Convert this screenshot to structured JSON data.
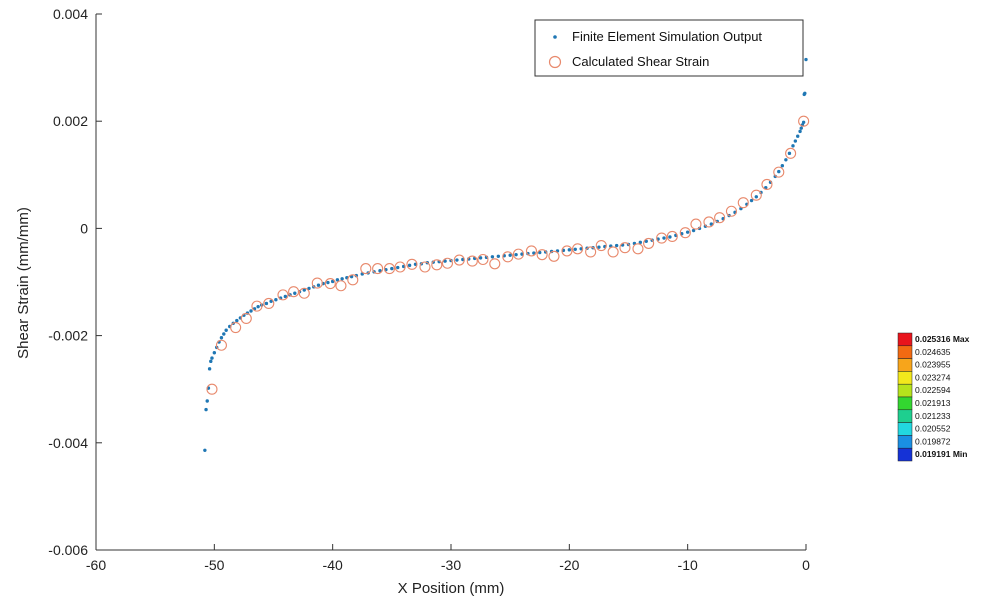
{
  "chart_data": {
    "type": "scatter",
    "title": "",
    "xlabel": "X Position (mm)",
    "ylabel": "Shear Strain (mm/mm)",
    "xlim": [
      -60,
      0
    ],
    "ylim": [
      -0.006,
      0.004
    ],
    "xticks": [
      -60,
      -50,
      -40,
      -30,
      -20,
      -10,
      0
    ],
    "xtick_labels": [
      "-60",
      "-50",
      "-40",
      "-30",
      "-20",
      "-10",
      "0"
    ],
    "yticks": [
      -0.006,
      -0.004,
      -0.002,
      0,
      0.002,
      0.004
    ],
    "ytick_labels": [
      "-0.006",
      "-0.004",
      "-0.002",
      "0",
      "0.002",
      "0.004"
    ],
    "grid": false,
    "legend_position": "top-right",
    "series": [
      {
        "name": "Finite Element Simulation Output",
        "marker": "dot",
        "color": "#1f77b4",
        "x": [
          -50.8,
          -50.7,
          -50.6,
          -50.5,
          -50.4,
          -50.3,
          -50.2,
          -50.0,
          -49.8,
          -49.6,
          -49.4,
          -49.2,
          -49.0,
          -48.7,
          -48.4,
          -48.1,
          -47.8,
          -47.5,
          -47.2,
          -46.9,
          -46.6,
          -46.3,
          -46.0,
          -45.6,
          -45.2,
          -44.8,
          -44.4,
          -44.0,
          -43.6,
          -43.2,
          -42.8,
          -42.4,
          -42.0,
          -41.6,
          -41.2,
          -40.8,
          -40.4,
          -40.0,
          -39.6,
          -39.2,
          -38.8,
          -38.4,
          -38.0,
          -37.5,
          -37.0,
          -36.5,
          -36.0,
          -35.5,
          -35.0,
          -34.5,
          -34.0,
          -33.5,
          -33.0,
          -32.5,
          -32.0,
          -31.5,
          -31.0,
          -30.5,
          -30.0,
          -29.5,
          -29.0,
          -28.5,
          -28.0,
          -27.5,
          -27.0,
          -26.5,
          -26.0,
          -25.5,
          -25.0,
          -24.5,
          -24.0,
          -23.5,
          -23.0,
          -22.5,
          -22.0,
          -21.5,
          -21.0,
          -20.5,
          -20.0,
          -19.5,
          -19.0,
          -18.5,
          -18.0,
          -17.5,
          -17.0,
          -16.5,
          -16.0,
          -15.5,
          -15.0,
          -14.5,
          -14.0,
          -13.5,
          -13.0,
          -12.5,
          -12.0,
          -11.5,
          -11.0,
          -10.5,
          -10.0,
          -9.5,
          -9.0,
          -8.5,
          -8.0,
          -7.5,
          -7.0,
          -6.5,
          -6.0,
          -5.5,
          -5.0,
          -4.6,
          -4.2,
          -3.8,
          -3.4,
          -3.0,
          -2.6,
          -2.3,
          -2.0,
          -1.7,
          -1.4,
          -1.1,
          -0.9,
          -0.7,
          -0.5,
          -0.4,
          -0.3,
          -0.2
        ],
        "y": [
          -0.00414,
          -0.00338,
          -0.00322,
          -0.00298,
          -0.00262,
          -0.00248,
          -0.00242,
          -0.00232,
          -0.00222,
          -0.00212,
          -0.00204,
          -0.00197,
          -0.0019,
          -0.00183,
          -0.00177,
          -0.00172,
          -0.00167,
          -0.00162,
          -0.00158,
          -0.00154,
          -0.0015,
          -0.00146,
          -0.00143,
          -0.0014,
          -0.00136,
          -0.00133,
          -0.0013,
          -0.00127,
          -0.00124,
          -0.00121,
          -0.00118,
          -0.00115,
          -0.00112,
          -0.00109,
          -0.00106,
          -0.00103,
          -0.00101,
          -0.00099,
          -0.00096,
          -0.00094,
          -0.00092,
          -0.0009,
          -0.00088,
          -0.00085,
          -0.00083,
          -0.00081,
          -0.00079,
          -0.00077,
          -0.00075,
          -0.00073,
          -0.00071,
          -0.00069,
          -0.00067,
          -0.00066,
          -0.00064,
          -0.00063,
          -0.00062,
          -0.00061,
          -0.0006,
          -0.00059,
          -0.00058,
          -0.00057,
          -0.00056,
          -0.00055,
          -0.00054,
          -0.00053,
          -0.00052,
          -0.00051,
          -0.0005,
          -0.00049,
          -0.00048,
          -0.00047,
          -0.00046,
          -0.00045,
          -0.00044,
          -0.00043,
          -0.00042,
          -0.00041,
          -0.0004,
          -0.00039,
          -0.00038,
          -0.00037,
          -0.00036,
          -0.00035,
          -0.00034,
          -0.00033,
          -0.00032,
          -0.00031,
          -0.0003,
          -0.00028,
          -0.00026,
          -0.00024,
          -0.00022,
          -0.0002,
          -0.00018,
          -0.00016,
          -0.00013,
          -0.0001,
          -7e-05,
          -4e-05,
          0.0,
          4e-05,
          8e-05,
          0.00013,
          0.00018,
          0.00024,
          0.0003,
          0.00037,
          0.00045,
          0.00052,
          0.00059,
          0.00067,
          0.00076,
          0.00086,
          0.00097,
          0.00106,
          0.00117,
          0.00128,
          0.0014,
          0.00154,
          0.00163,
          0.00172,
          0.00181,
          0.00187,
          0.00193,
          0.00198
        ]
      },
      {
        "name": "Calculated Shear Strain",
        "marker": "circle",
        "color": "#e8896c",
        "x": [
          -50.2,
          -49.4,
          -48.2,
          -47.3,
          -46.4,
          -45.4,
          -44.2,
          -43.3,
          -42.4,
          -41.3,
          -40.2,
          -39.3,
          -38.3,
          -37.2,
          -36.2,
          -35.2,
          -34.3,
          -33.3,
          -32.2,
          -31.2,
          -30.3,
          -29.3,
          -28.2,
          -27.3,
          -26.3,
          -25.2,
          -24.3,
          -23.2,
          -22.3,
          -21.3,
          -20.2,
          -19.3,
          -18.2,
          -17.3,
          -16.3,
          -15.3,
          -14.2,
          -13.3,
          -12.2,
          -11.3,
          -10.2,
          -9.3,
          -8.2,
          -7.3,
          -6.3,
          -5.3,
          -4.2,
          -3.3,
          -2.3,
          -1.3,
          -0.2
        ],
        "y": [
          -0.003,
          -0.00218,
          -0.00185,
          -0.00168,
          -0.00145,
          -0.0014,
          -0.00124,
          -0.00118,
          -0.00121,
          -0.00102,
          -0.00103,
          -0.00107,
          -0.00096,
          -0.00075,
          -0.00075,
          -0.00075,
          -0.00072,
          -0.00067,
          -0.00072,
          -0.00068,
          -0.00065,
          -0.00059,
          -0.00061,
          -0.00058,
          -0.00066,
          -0.00053,
          -0.00048,
          -0.00042,
          -0.00049,
          -0.00052,
          -0.00042,
          -0.00038,
          -0.00044,
          -0.00032,
          -0.00044,
          -0.00036,
          -0.00038,
          -0.00028,
          -0.00018,
          -0.00015,
          -8e-05,
          8e-05,
          0.00012,
          0.0002,
          0.00032,
          0.00048,
          0.00062,
          0.00082,
          0.00105,
          0.0014,
          0.002
        ]
      }
    ],
    "colorbar": {
      "labels": [
        "0.025316 Max",
        "0.024635",
        "0.023955",
        "0.023274",
        "0.022594",
        "0.021913",
        "0.021233",
        "0.020552",
        "0.019872",
        "0.019191 Min"
      ],
      "colors": [
        "#e8141c",
        "#f26a12",
        "#f7a51b",
        "#f2e81c",
        "#b6e31c",
        "#33d630",
        "#1ecf8f",
        "#22d8e0",
        "#1a8fe3",
        "#1532d6"
      ]
    }
  }
}
